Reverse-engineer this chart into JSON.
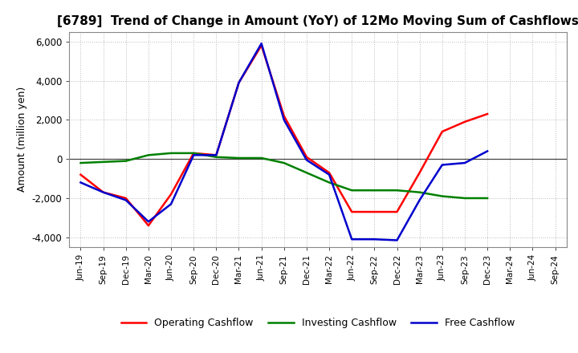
{
  "title": "[6789]  Trend of Change in Amount (YoY) of 12Mo Moving Sum of Cashflows",
  "ylabel": "Amount (million yen)",
  "xlabels": [
    "Jun-19",
    "Sep-19",
    "Dec-19",
    "Mar-20",
    "Jun-20",
    "Sep-20",
    "Dec-20",
    "Mar-21",
    "Jun-21",
    "Sep-21",
    "Dec-21",
    "Mar-22",
    "Jun-22",
    "Sep-22",
    "Dec-22",
    "Mar-23",
    "Jun-23",
    "Sep-23",
    "Dec-23",
    "Mar-24",
    "Jun-24",
    "Sep-24"
  ],
  "operating": [
    -800,
    -1700,
    -2000,
    -3400,
    -1800,
    300,
    200,
    3900,
    5800,
    2200,
    100,
    -700,
    -2700,
    -2700,
    -2700,
    -700,
    1400,
    1900,
    2300,
    null,
    null,
    null
  ],
  "investing": [
    -200,
    -150,
    -100,
    200,
    300,
    300,
    100,
    50,
    50,
    -200,
    -700,
    -1200,
    -1600,
    -1600,
    -1600,
    -1700,
    -1900,
    -2000,
    -2000,
    null,
    null,
    null
  ],
  "free": [
    -1200,
    -1700,
    -2100,
    -3200,
    -2300,
    200,
    200,
    3900,
    5900,
    2000,
    -50,
    -800,
    -4100,
    -4100,
    -4150,
    -2100,
    -300,
    -200,
    400,
    null,
    null,
    null
  ],
  "operating_color": "#ff0000",
  "investing_color": "#008000",
  "free_color": "#0000cd",
  "ylim": [
    -4500,
    6500
  ],
  "yticks": [
    -4000,
    -2000,
    0,
    2000,
    4000,
    6000
  ],
  "background_color": "#ffffff",
  "grid_color": "#bbbbbb",
  "title_fontsize": 11,
  "axis_fontsize": 9,
  "legend_fontsize": 9,
  "linewidth": 1.8
}
